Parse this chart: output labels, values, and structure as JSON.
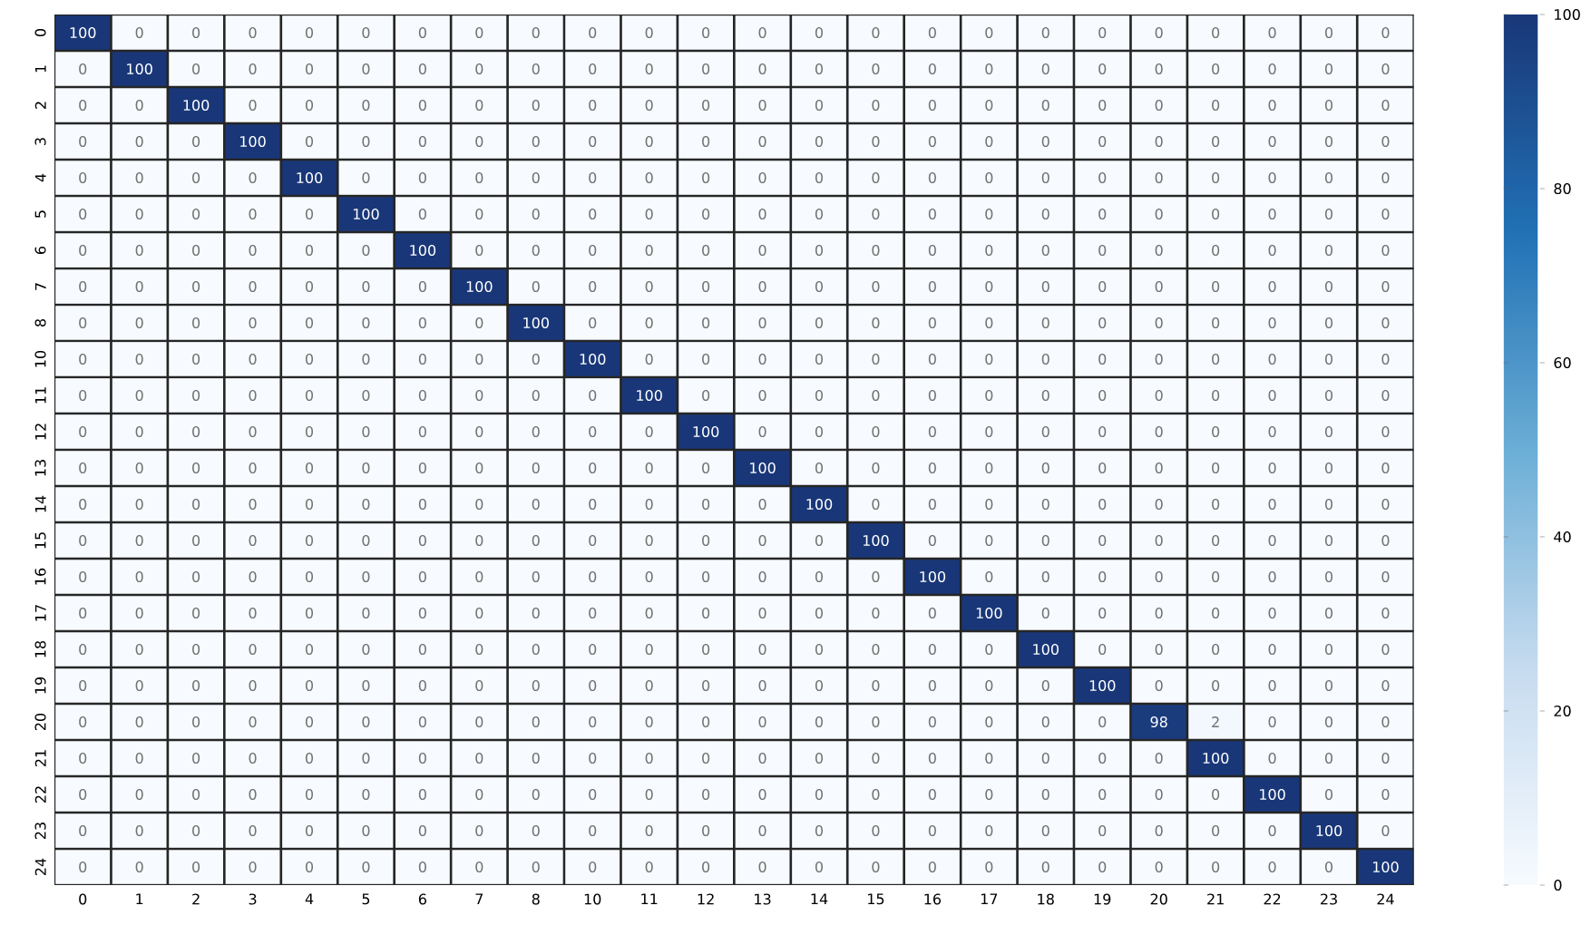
{
  "chart_data": {
    "type": "heatmap",
    "categories": [
      "0",
      "1",
      "2",
      "3",
      "4",
      "5",
      "6",
      "7",
      "8",
      "10",
      "11",
      "12",
      "13",
      "14",
      "15",
      "16",
      "17",
      "18",
      "19",
      "20",
      "21",
      "22",
      "23",
      "24"
    ],
    "y_categories": [
      "0",
      "1",
      "2",
      "3",
      "4",
      "5",
      "6",
      "7",
      "8",
      "10",
      "11",
      "12",
      "13",
      "14",
      "15",
      "16",
      "17",
      "18",
      "19",
      "20",
      "21",
      "22",
      "23",
      "24"
    ],
    "cells": [
      [
        100,
        0,
        0,
        0,
        0,
        0,
        0,
        0,
        0,
        0,
        0,
        0,
        0,
        0,
        0,
        0,
        0,
        0,
        0,
        0,
        0,
        0,
        0,
        0
      ],
      [
        0,
        100,
        0,
        0,
        0,
        0,
        0,
        0,
        0,
        0,
        0,
        0,
        0,
        0,
        0,
        0,
        0,
        0,
        0,
        0,
        0,
        0,
        0,
        0
      ],
      [
        0,
        0,
        100,
        0,
        0,
        0,
        0,
        0,
        0,
        0,
        0,
        0,
        0,
        0,
        0,
        0,
        0,
        0,
        0,
        0,
        0,
        0,
        0,
        0
      ],
      [
        0,
        0,
        0,
        100,
        0,
        0,
        0,
        0,
        0,
        0,
        0,
        0,
        0,
        0,
        0,
        0,
        0,
        0,
        0,
        0,
        0,
        0,
        0,
        0
      ],
      [
        0,
        0,
        0,
        0,
        100,
        0,
        0,
        0,
        0,
        0,
        0,
        0,
        0,
        0,
        0,
        0,
        0,
        0,
        0,
        0,
        0,
        0,
        0,
        0
      ],
      [
        0,
        0,
        0,
        0,
        0,
        100,
        0,
        0,
        0,
        0,
        0,
        0,
        0,
        0,
        0,
        0,
        0,
        0,
        0,
        0,
        0,
        0,
        0,
        0
      ],
      [
        0,
        0,
        0,
        0,
        0,
        0,
        100,
        0,
        0,
        0,
        0,
        0,
        0,
        0,
        0,
        0,
        0,
        0,
        0,
        0,
        0,
        0,
        0,
        0
      ],
      [
        0,
        0,
        0,
        0,
        0,
        0,
        0,
        100,
        0,
        0,
        0,
        0,
        0,
        0,
        0,
        0,
        0,
        0,
        0,
        0,
        0,
        0,
        0,
        0
      ],
      [
        0,
        0,
        0,
        0,
        0,
        0,
        0,
        0,
        100,
        0,
        0,
        0,
        0,
        0,
        0,
        0,
        0,
        0,
        0,
        0,
        0,
        0,
        0,
        0
      ],
      [
        0,
        0,
        0,
        0,
        0,
        0,
        0,
        0,
        0,
        100,
        0,
        0,
        0,
        0,
        0,
        0,
        0,
        0,
        0,
        0,
        0,
        0,
        0,
        0
      ],
      [
        0,
        0,
        0,
        0,
        0,
        0,
        0,
        0,
        0,
        0,
        100,
        0,
        0,
        0,
        0,
        0,
        0,
        0,
        0,
        0,
        0,
        0,
        0,
        0
      ],
      [
        0,
        0,
        0,
        0,
        0,
        0,
        0,
        0,
        0,
        0,
        0,
        100,
        0,
        0,
        0,
        0,
        0,
        0,
        0,
        0,
        0,
        0,
        0,
        0
      ],
      [
        0,
        0,
        0,
        0,
        0,
        0,
        0,
        0,
        0,
        0,
        0,
        0,
        100,
        0,
        0,
        0,
        0,
        0,
        0,
        0,
        0,
        0,
        0,
        0
      ],
      [
        0,
        0,
        0,
        0,
        0,
        0,
        0,
        0,
        0,
        0,
        0,
        0,
        0,
        100,
        0,
        0,
        0,
        0,
        0,
        0,
        0,
        0,
        0,
        0
      ],
      [
        0,
        0,
        0,
        0,
        0,
        0,
        0,
        0,
        0,
        0,
        0,
        0,
        0,
        0,
        100,
        0,
        0,
        0,
        0,
        0,
        0,
        0,
        0,
        0
      ],
      [
        0,
        0,
        0,
        0,
        0,
        0,
        0,
        0,
        0,
        0,
        0,
        0,
        0,
        0,
        0,
        100,
        0,
        0,
        0,
        0,
        0,
        0,
        0,
        0
      ],
      [
        0,
        0,
        0,
        0,
        0,
        0,
        0,
        0,
        0,
        0,
        0,
        0,
        0,
        0,
        0,
        0,
        100,
        0,
        0,
        0,
        0,
        0,
        0,
        0
      ],
      [
        0,
        0,
        0,
        0,
        0,
        0,
        0,
        0,
        0,
        0,
        0,
        0,
        0,
        0,
        0,
        0,
        0,
        100,
        0,
        0,
        0,
        0,
        0,
        0
      ],
      [
        0,
        0,
        0,
        0,
        0,
        0,
        0,
        0,
        0,
        0,
        0,
        0,
        0,
        0,
        0,
        0,
        0,
        0,
        100,
        0,
        0,
        0,
        0,
        0
      ],
      [
        0,
        0,
        0,
        0,
        0,
        0,
        0,
        0,
        0,
        0,
        0,
        0,
        0,
        0,
        0,
        0,
        0,
        0,
        0,
        98,
        2,
        0,
        0,
        0
      ],
      [
        0,
        0,
        0,
        0,
        0,
        0,
        0,
        0,
        0,
        0,
        0,
        0,
        0,
        0,
        0,
        0,
        0,
        0,
        0,
        0,
        100,
        0,
        0,
        0
      ],
      [
        0,
        0,
        0,
        0,
        0,
        0,
        0,
        0,
        0,
        0,
        0,
        0,
        0,
        0,
        0,
        0,
        0,
        0,
        0,
        0,
        0,
        100,
        0,
        0
      ],
      [
        0,
        0,
        0,
        0,
        0,
        0,
        0,
        0,
        0,
        0,
        0,
        0,
        0,
        0,
        0,
        0,
        0,
        0,
        0,
        0,
        0,
        0,
        100,
        0
      ],
      [
        0,
        0,
        0,
        0,
        0,
        0,
        0,
        0,
        0,
        0,
        0,
        0,
        0,
        0,
        0,
        0,
        0,
        0,
        0,
        0,
        0,
        0,
        0,
        100
      ]
    ],
    "cell_labels": [
      [
        "100",
        "0",
        "0",
        "0",
        "0",
        "0",
        "0",
        "0",
        "0",
        "0",
        "0",
        "0",
        "0",
        "0",
        "0",
        "0",
        "0",
        "0",
        "0",
        "0",
        "0",
        "0",
        "0",
        "0"
      ],
      [
        "0",
        "100",
        "0",
        "0",
        "0",
        "0",
        "0",
        "0",
        "0",
        "0",
        "0",
        "0",
        "0",
        "0",
        "0",
        "0",
        "0",
        "0",
        "0",
        "0",
        "0",
        "0",
        "0",
        "0"
      ],
      [
        "0",
        "0",
        "100",
        "0",
        "0",
        "0",
        "0",
        "0",
        "0",
        "0",
        "0",
        "0",
        "0",
        "0",
        "0",
        "0",
        "0",
        "0",
        "0",
        "0",
        "0",
        "0",
        "0",
        "0"
      ],
      [
        "0",
        "0",
        "0",
        "100",
        "0",
        "0",
        "0",
        "0",
        "0",
        "0",
        "0",
        "0",
        "0",
        "0",
        "0",
        "0",
        "0",
        "0",
        "0",
        "0",
        "0",
        "0",
        "0",
        "0"
      ],
      [
        "0",
        "0",
        "0",
        "0",
        "100",
        "0",
        "0",
        "0",
        "0",
        "0",
        "0",
        "0",
        "0",
        "0",
        "0",
        "0",
        "0",
        "0",
        "0",
        "0",
        "0",
        "0",
        "0",
        "0"
      ],
      [
        "0",
        "0",
        "0",
        "0",
        "0",
        "100",
        "0",
        "0",
        "0",
        "0",
        "0",
        "0",
        "0",
        "0",
        "0",
        "0",
        "0",
        "0",
        "0",
        "0",
        "0",
        "0",
        "0",
        "0"
      ],
      [
        "0",
        "0",
        "0",
        "0",
        "0",
        "0",
        "100",
        "0",
        "0",
        "0",
        "0",
        "0",
        "0",
        "0",
        "0",
        "0",
        "0",
        "0",
        "0",
        "0",
        "0",
        "0",
        "0",
        "0"
      ],
      [
        "0",
        "0",
        "0",
        "0",
        "0",
        "0",
        "0",
        "100",
        "0",
        "0",
        "0",
        "0",
        "0",
        "0",
        "0",
        "0",
        "0",
        "0",
        "0",
        "0",
        "0",
        "0",
        "0",
        "0"
      ],
      [
        "0",
        "0",
        "0",
        "0",
        "0",
        "0",
        "0",
        "0",
        "100",
        "0",
        "0",
        "0",
        "0",
        "0",
        "0",
        "0",
        "0",
        "0",
        "0",
        "0",
        "0",
        "0",
        "0",
        "0"
      ],
      [
        "0",
        "0",
        "0",
        "0",
        "0",
        "0",
        "0",
        "0",
        "0",
        "100",
        "0",
        "0",
        "0",
        "0",
        "0",
        "0",
        "0",
        "0",
        "0",
        "0",
        "0",
        "0",
        "0",
        "0"
      ],
      [
        "0",
        "0",
        "0",
        "0",
        "0",
        "0",
        "0",
        "0",
        "0",
        "0",
        "100",
        "0",
        "0",
        "0",
        "0",
        "0",
        "0",
        "0",
        "0",
        "0",
        "0",
        "0",
        "0",
        "0"
      ],
      [
        "0",
        "0",
        "0",
        "0",
        "0",
        "0",
        "0",
        "0",
        "0",
        "0",
        "0",
        "100",
        "0",
        "0",
        "0",
        "0",
        "0",
        "0",
        "0",
        "0",
        "0",
        "0",
        "0",
        "0"
      ],
      [
        "0",
        "0",
        "0",
        "0",
        "0",
        "0",
        "0",
        "0",
        "0",
        "0",
        "0",
        "0",
        "100",
        "0",
        "0",
        "0",
        "0",
        "0",
        "0",
        "0",
        "0",
        "0",
        "0",
        "0"
      ],
      [
        "0",
        "0",
        "0",
        "0",
        "0",
        "0",
        "0",
        "0",
        "0",
        "0",
        "0",
        "0",
        "0",
        "100",
        "0",
        "0",
        "0",
        "0",
        "0",
        "0",
        "0",
        "0",
        "0",
        "0"
      ],
      [
        "0",
        "0",
        "0",
        "0",
        "0",
        "0",
        "0",
        "0",
        "0",
        "0",
        "0",
        "0",
        "0",
        "0",
        "100",
        "0",
        "0",
        "0",
        "0",
        "0",
        "0",
        "0",
        "0",
        "0"
      ],
      [
        "0",
        "0",
        "0",
        "0",
        "0",
        "0",
        "0",
        "0",
        "0",
        "0",
        "0",
        "0",
        "0",
        "0",
        "0",
        "100",
        "0",
        "0",
        "0",
        "0",
        "0",
        "0",
        "0",
        "0"
      ],
      [
        "0",
        "0",
        "0",
        "0",
        "0",
        "0",
        "0",
        "0",
        "0",
        "0",
        "0",
        "0",
        "0",
        "0",
        "0",
        "0",
        "100",
        "0",
        "0",
        "0",
        "0",
        "0",
        "0",
        "0"
      ],
      [
        "0",
        "0",
        "0",
        "0",
        "0",
        "0",
        "0",
        "0",
        "0",
        "0",
        "0",
        "0",
        "0",
        "0",
        "0",
        "0",
        "0",
        "100",
        "0",
        "0",
        "0",
        "0",
        "0",
        "0"
      ],
      [
        "0",
        "0",
        "0",
        "0",
        "0",
        "0",
        "0",
        "0",
        "0",
        "0",
        "0",
        "0",
        "0",
        "0",
        "0",
        "0",
        "0",
        "0",
        "100",
        "0",
        "0",
        "0",
        "0",
        "0"
      ],
      [
        "0",
        "0",
        "0",
        "0",
        "0",
        "0",
        "0",
        "0",
        "0",
        "0",
        "0",
        "0",
        "0",
        "0",
        "0",
        "0",
        "0",
        "0",
        "0",
        "98",
        "2",
        "0",
        "0",
        "0"
      ],
      [
        "0",
        "0",
        "0",
        "0",
        "0",
        "0",
        "0",
        "0",
        "0",
        "0",
        "0",
        "0",
        "0",
        "0",
        "0",
        "0",
        "0",
        "0",
        "0",
        "0",
        "100",
        "0",
        "0",
        "0"
      ],
      [
        "0",
        "0",
        "0",
        "0",
        "0",
        "0",
        "0",
        "0",
        "0",
        "0",
        "0",
        "0",
        "0",
        "0",
        "0",
        "0",
        "0",
        "0",
        "0",
        "0",
        "0",
        "100",
        "0",
        "0"
      ],
      [
        "0",
        "0",
        "0",
        "0",
        "0",
        "0",
        "0",
        "0",
        "0",
        "0",
        "0",
        "0",
        "0",
        "0",
        "0",
        "0",
        "0",
        "0",
        "0",
        "0",
        "0",
        "0",
        "100",
        "0"
      ],
      [
        "0",
        "0",
        "0",
        "0",
        "0",
        "0",
        "0",
        "0",
        "0",
        "0",
        "0",
        "0",
        "0",
        "0",
        "0",
        "0",
        "0",
        "0",
        "0",
        "0",
        "0",
        "0",
        "0",
        "100"
      ]
    ],
    "clim": [
      0,
      100
    ],
    "cticks": [
      0,
      20,
      40,
      60,
      80,
      100
    ]
  }
}
